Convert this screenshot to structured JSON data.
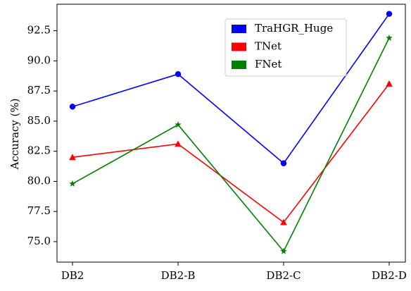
{
  "chart_data": {
    "type": "line",
    "categories": [
      "DB2",
      "DB2-B",
      "DB2-C",
      "DB2-D"
    ],
    "ylabel": "Accuracy (%)",
    "yticks": [
      75.0,
      77.5,
      80.0,
      82.5,
      85.0,
      87.5,
      90.0,
      92.5
    ],
    "ytick_labels": [
      "75.0",
      "77.5",
      "80.0",
      "82.5",
      "85.0",
      "87.5",
      "90.0",
      "92.5"
    ],
    "ylim": [
      73.3,
      94.7
    ],
    "grid": false,
    "legend_position": "upper center-right",
    "series": [
      {
        "name": "TraHGR_Huge",
        "color": "#0000ff",
        "marker": "circle",
        "values": [
          86.2,
          88.9,
          81.5,
          93.9
        ]
      },
      {
        "name": "TNet",
        "color": "#ff0000",
        "marker": "triangle",
        "values": [
          82.0,
          83.1,
          76.6,
          88.1
        ]
      },
      {
        "name": "FNet",
        "color": "#008000",
        "marker": "star",
        "values": [
          79.8,
          84.7,
          74.2,
          91.9
        ]
      }
    ]
  }
}
